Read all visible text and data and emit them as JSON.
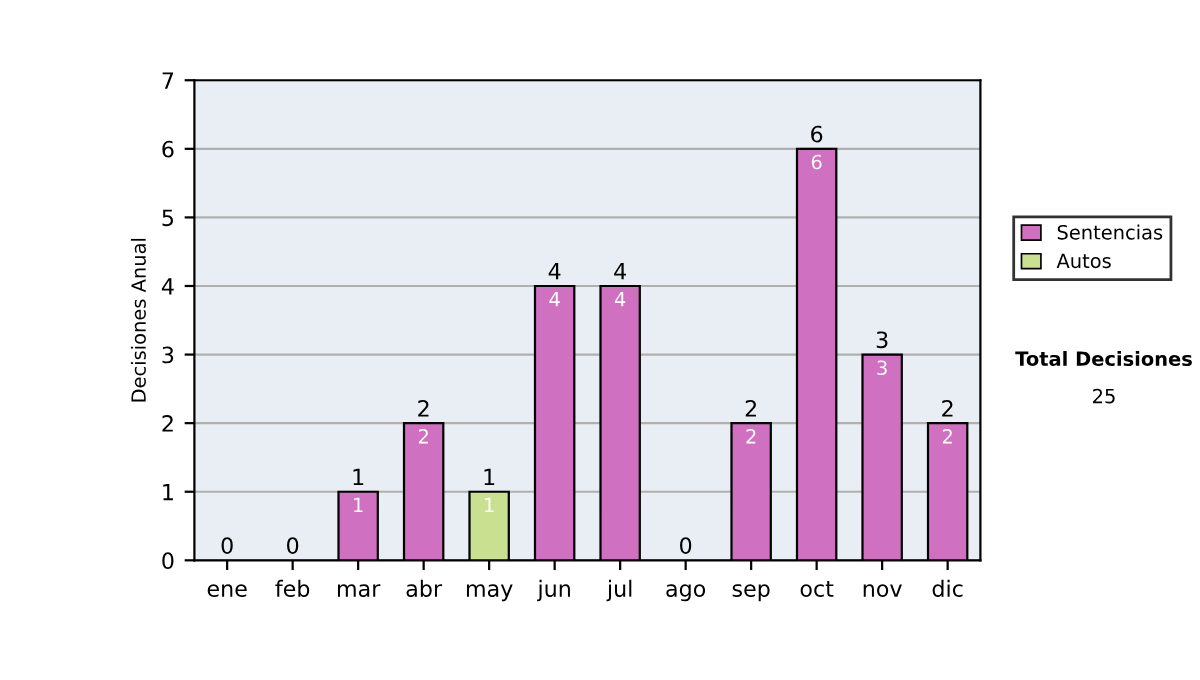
{
  "chart_data": {
    "type": "bar",
    "stacked": true,
    "ylabel": "Decisiones Anual",
    "categories": [
      "ene",
      "feb",
      "mar",
      "abr",
      "may",
      "jun",
      "jul",
      "ago",
      "sep",
      "oct",
      "nov",
      "dic"
    ],
    "series": [
      {
        "name": "Sentencias",
        "color": "#d070c0",
        "values": [
          0,
          0,
          1,
          2,
          0,
          4,
          4,
          0,
          2,
          6,
          3,
          2
        ],
        "value_labels": [
          null,
          null,
          "1",
          "2",
          null,
          "4",
          "4",
          null,
          "2",
          "6",
          "3",
          "2"
        ]
      },
      {
        "name": "Autos",
        "color": "#c8e090",
        "values": [
          0,
          0,
          0,
          0,
          1,
          0,
          0,
          0,
          0,
          0,
          0,
          0
        ],
        "value_labels": [
          null,
          null,
          null,
          null,
          "1",
          null,
          null,
          null,
          null,
          null,
          null,
          null
        ]
      }
    ],
    "totals": [
      "0",
      "0",
      "1",
      "2",
      "1",
      "4",
      "4",
      "0",
      "2",
      "6",
      "3",
      "2"
    ],
    "ylim": [
      0,
      7
    ],
    "yticks": [
      0,
      1,
      2,
      3,
      4,
      5,
      6,
      7
    ],
    "grid": "y",
    "legend": "right",
    "annotations": [
      "Total Decisiones",
      "25"
    ]
  }
}
